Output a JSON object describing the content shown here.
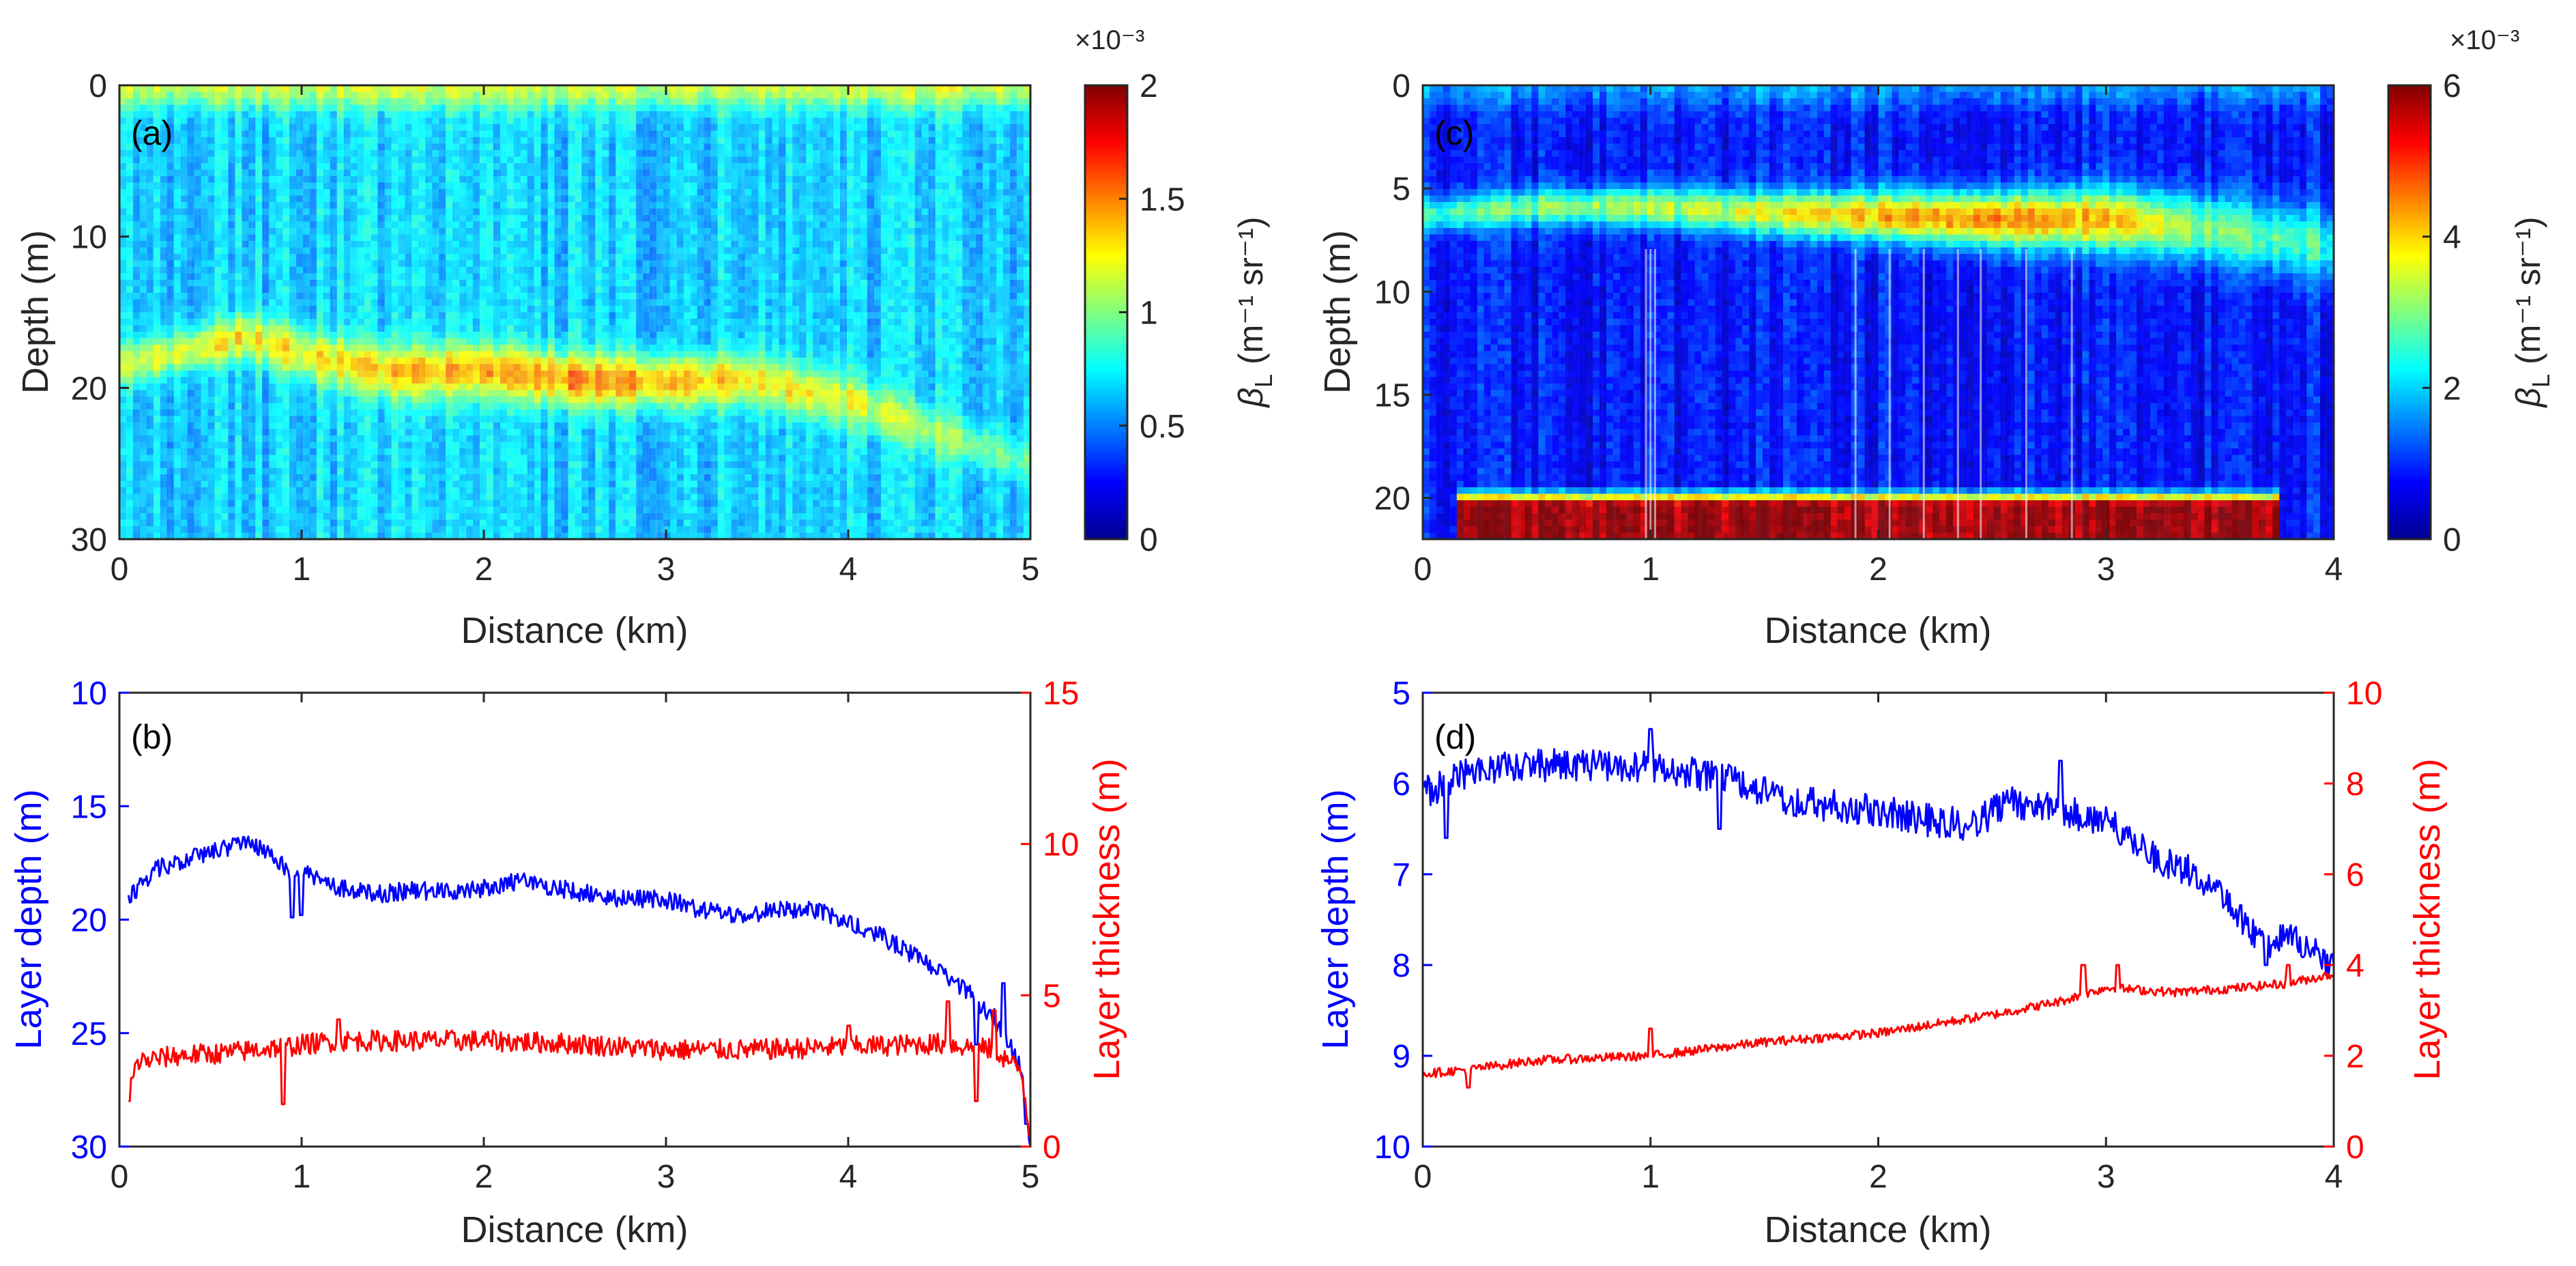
{
  "chart_data": [
    {
      "id": "a",
      "type": "heatmap",
      "panel_label": "(a)",
      "xlabel": "Distance (km)",
      "ylabel": "Depth (m)",
      "xlim": [
        0,
        5
      ],
      "ylim": [
        0,
        30
      ],
      "y_reversed": true,
      "xticks": [
        "0",
        "1",
        "2",
        "3",
        "4",
        "5"
      ],
      "yticks": [
        "0",
        "10",
        "20",
        "30"
      ],
      "colorbar": {
        "label": "βL (m⁻¹ sr⁻¹)",
        "label_main": "β",
        "label_sub": "L",
        "label_rest": " (m⁻¹ sr⁻¹)",
        "range": [
          0,
          2
        ],
        "ticks": [
          "0",
          "0.5",
          "1",
          "1.5",
          "2"
        ],
        "exponent": "×10⁻³"
      },
      "scattering_layer": {
        "distance_km": [
          0,
          0.5,
          0.7,
          1,
          1.5,
          2,
          2.5,
          3,
          3.5,
          4,
          4.5,
          5
        ],
        "depth_m": [
          18.5,
          17.2,
          16.6,
          17.8,
          19,
          18.8,
          19.5,
          19.6,
          19.5,
          20.8,
          23,
          25
        ],
        "thickness_m": [
          2.5,
          2.8,
          3,
          3.3,
          3.5,
          3.5,
          3.5,
          3.3,
          3.3,
          3.3,
          3.0,
          2.5
        ],
        "peak_value": [
          1.15,
          1.25,
          1.3,
          1.25,
          1.35,
          1.4,
          1.5,
          1.45,
          1.3,
          1.2,
          1.05,
          0.95
        ]
      },
      "surface_value": 1.15,
      "background_value": 0.65
    },
    {
      "id": "b",
      "type": "line",
      "panel_label": "(b)",
      "xlabel": "Distance (km)",
      "ylabel": "Layer depth (m)",
      "y2label": "Layer thickness (m)",
      "xlim": [
        0,
        5
      ],
      "ylim": [
        10,
        30
      ],
      "y_reversed": true,
      "y2lim": [
        0,
        15
      ],
      "xticks": [
        "0",
        "1",
        "2",
        "3",
        "4",
        "5"
      ],
      "yticks": [
        "10",
        "15",
        "20",
        "25",
        "30"
      ],
      "y2ticks": [
        "0",
        "5",
        "10",
        "15"
      ],
      "series": [
        {
          "name": "Layer depth",
          "axis": "left",
          "color": "#0000ff",
          "x": [
            0.05,
            0.2,
            0.4,
            0.6,
            0.7,
            0.85,
            0.95,
            1.05,
            1.2,
            1.4,
            1.6,
            1.8,
            2.0,
            2.2,
            2.4,
            2.6,
            2.8,
            3.0,
            3.2,
            3.4,
            3.6,
            3.8,
            4.0,
            4.2,
            4.4,
            4.6,
            4.8,
            4.95,
            5.0
          ],
          "y": [
            19,
            17.8,
            17.2,
            16.8,
            16.5,
            17.2,
            18.2,
            18,
            18.6,
            18.9,
            18.7,
            18.8,
            18.6,
            18.3,
            18.6,
            18.9,
            19.1,
            19.1,
            19.6,
            19.8,
            19.6,
            19.5,
            20.2,
            20.8,
            21.8,
            22.8,
            24.3,
            26.5,
            30
          ],
          "noise_amplitude": 0.4,
          "spikes": [
            {
              "x": 0.95,
              "y": 19.9
            },
            {
              "x": 1.0,
              "y": 19.8
            },
            {
              "x": 4.7,
              "y": 25.5
            },
            {
              "x": 4.85,
              "y": 22.8
            },
            {
              "x": 4.98,
              "y": 29
            }
          ]
        },
        {
          "name": "Layer thickness",
          "axis": "right",
          "color": "#ff0000",
          "x": [
            0.05,
            0.1,
            0.3,
            0.6,
            0.9,
            1.2,
            1.5,
            2.0,
            2.5,
            3.0,
            3.5,
            4.0,
            4.5,
            4.8,
            4.95,
            5.0
          ],
          "y": [
            1.8,
            2.8,
            3.0,
            3.1,
            3.3,
            3.5,
            3.5,
            3.5,
            3.4,
            3.2,
            3.2,
            3.3,
            3.4,
            3.2,
            2.5,
            0.3
          ],
          "noise_amplitude": 0.35,
          "spikes": [
            {
              "x": 0.05,
              "y": 1.5
            },
            {
              "x": 0.9,
              "y": 1.4
            },
            {
              "x": 1.2,
              "y": 4.2
            },
            {
              "x": 4.0,
              "y": 4.0
            },
            {
              "x": 4.55,
              "y": 4.8
            },
            {
              "x": 4.7,
              "y": 1.5
            },
            {
              "x": 4.8,
              "y": 4.5
            }
          ]
        }
      ]
    },
    {
      "id": "c",
      "type": "heatmap",
      "panel_label": "(c)",
      "xlabel": "Distance (km)",
      "ylabel": "Depth (m)",
      "xlim": [
        0,
        4
      ],
      "ylim": [
        0,
        22
      ],
      "y_reversed": true,
      "xticks": [
        "0",
        "1",
        "2",
        "3",
        "4"
      ],
      "yticks": [
        "0",
        "5",
        "10",
        "15",
        "20"
      ],
      "colorbar": {
        "label": "βL (m⁻¹ sr⁻¹)",
        "label_main": "β",
        "label_sub": "L",
        "label_rest": " (m⁻¹ sr⁻¹)",
        "range": [
          0,
          6
        ],
        "ticks": [
          "0",
          "2",
          "4",
          "6"
        ],
        "exponent": "×10⁻³"
      },
      "scattering_layer": {
        "distance_km": [
          0,
          0.5,
          1,
          1.5,
          2,
          2.5,
          3,
          3.5,
          4
        ],
        "depth_m": [
          6.3,
          5.9,
          5.9,
          6.2,
          6.3,
          6.5,
          6.5,
          7,
          7.8
        ],
        "thickness_m": [
          1.6,
          1.8,
          1.9,
          2.1,
          2.4,
          2.7,
          3.0,
          3.2,
          3.5
        ],
        "peak_value": [
          2.6,
          3.0,
          3.3,
          3.6,
          4.2,
          4.6,
          4.1,
          3.0,
          2.5
        ]
      },
      "bottom_layer": {
        "depth_m": [
          19.5,
          22
        ],
        "value": 5.8,
        "extent_km": [
          0.15,
          3.75
        ]
      },
      "background_value": 0.8,
      "surface_value": 1.6
    },
    {
      "id": "d",
      "type": "line",
      "panel_label": "(d)",
      "xlabel": "Distance (km)",
      "ylabel": "Layer depth (m)",
      "y2label": "Layer thickness (m)",
      "xlim": [
        0,
        4
      ],
      "ylim": [
        5,
        10
      ],
      "y_reversed": true,
      "y2lim": [
        0,
        10
      ],
      "xticks": [
        "0",
        "1",
        "2",
        "3",
        "4"
      ],
      "yticks": [
        "5",
        "6",
        "7",
        "8",
        "9",
        "10"
      ],
      "y2ticks": [
        "0",
        "2",
        "4",
        "6",
        "8",
        "10"
      ],
      "series": [
        {
          "name": "Layer depth",
          "axis": "left",
          "color": "#0000ff",
          "x": [
            0.0,
            0.1,
            0.2,
            0.3,
            0.5,
            0.8,
            1.0,
            1.2,
            1.4,
            1.6,
            1.8,
            2.0,
            2.2,
            2.4,
            2.6,
            2.8,
            3.0,
            3.2,
            3.4,
            3.6,
            3.7,
            3.8,
            4.0
          ],
          "y": [
            6.1,
            6.0,
            5.9,
            5.85,
            5.8,
            5.8,
            5.8,
            5.9,
            6.0,
            6.2,
            6.25,
            6.3,
            6.4,
            6.45,
            6.2,
            6.3,
            6.4,
            6.8,
            7.0,
            7.5,
            7.8,
            7.7,
            8.0
          ],
          "noise_amplitude": 0.18,
          "spikes": [
            {
              "x": 0.1,
              "y": 6.6
            },
            {
              "x": 1.0,
              "y": 5.4
            },
            {
              "x": 1.3,
              "y": 6.5
            },
            {
              "x": 2.8,
              "y": 5.75
            },
            {
              "x": 3.7,
              "y": 8.0
            }
          ]
        },
        {
          "name": "Layer thickness",
          "axis": "right",
          "color": "#ff0000",
          "x": [
            0.0,
            0.2,
            0.5,
            1.0,
            1.5,
            2.0,
            2.5,
            2.8,
            3.0,
            3.3,
            3.6,
            3.8,
            4.0
          ],
          "y": [
            1.6,
            1.7,
            1.9,
            2.0,
            2.3,
            2.5,
            2.9,
            3.2,
            3.5,
            3.4,
            3.5,
            3.6,
            3.8
          ],
          "noise_amplitude": 0.1,
          "spikes": [
            {
              "x": 0.2,
              "y": 1.3
            },
            {
              "x": 1.0,
              "y": 2.6
            },
            {
              "x": 2.9,
              "y": 4.0
            },
            {
              "x": 3.05,
              "y": 4.0
            },
            {
              "x": 3.8,
              "y": 4.0
            }
          ]
        }
      ]
    }
  ]
}
